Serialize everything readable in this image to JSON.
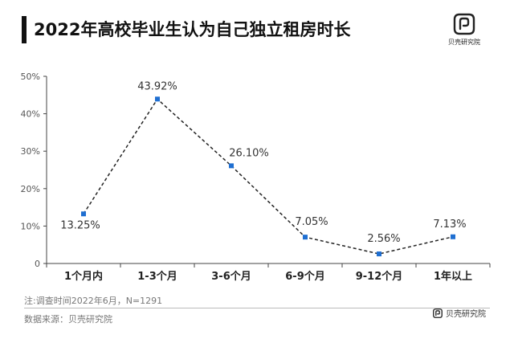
{
  "header": {
    "title": "2022年高校毕业生认为自己独立租房时长",
    "logo_text": "贝壳研究院"
  },
  "chart_data": {
    "type": "line",
    "title": "2022年高校毕业生认为自己独立租房时长",
    "categories": [
      "1个月内",
      "1-3个月",
      "3-6个月",
      "6-9个月",
      "9-12个月",
      "1年以上"
    ],
    "series": [
      {
        "values": [
          13.25,
          43.92,
          26.1,
          7.05,
          2.56,
          7.13
        ]
      }
    ],
    "data_labels": [
      "13.25%",
      "43.92%",
      "26.10%",
      "7.05%",
      "2.56%",
      "7.13%"
    ],
    "y_ticks": [
      "0",
      "10%",
      "20%",
      "30%",
      "40%",
      "50%"
    ],
    "ylim": [
      0,
      50
    ],
    "xlabel": "",
    "ylabel": "",
    "line_style": "dashed",
    "line_color": "#222222",
    "marker_color": "#1f6fd1",
    "grid": false
  },
  "footer": {
    "note": "注:调查时间2022年6月，N=1291",
    "source": "数据来源：贝壳研究院",
    "logo_small_text": "贝壳研究院"
  }
}
